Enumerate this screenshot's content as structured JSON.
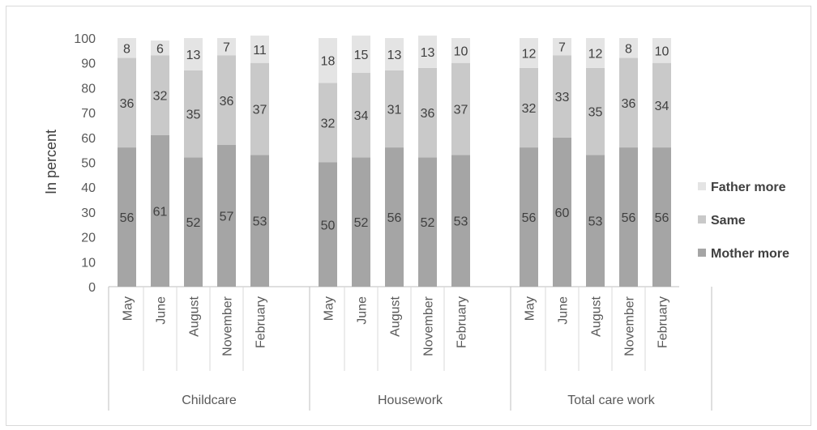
{
  "chart_data": {
    "type": "bar",
    "stacked": true,
    "ylabel": "In percent",
    "ylim": [
      0,
      100
    ],
    "yticks": [
      0,
      10,
      20,
      30,
      40,
      50,
      60,
      70,
      80,
      90,
      100
    ],
    "grid": false,
    "legend_position": "right",
    "groups": [
      {
        "name": "Childcare",
        "categories": [
          "May",
          "June",
          "August",
          "November",
          "February"
        ]
      },
      {
        "name": "Housework",
        "categories": [
          "May",
          "June",
          "August",
          "November",
          "February"
        ]
      },
      {
        "name": "Total care work",
        "categories": [
          "May",
          "June",
          "August",
          "November",
          "February"
        ]
      }
    ],
    "series": [
      {
        "name": "Mother more",
        "color": "#a5a5a5",
        "values": [
          [
            56,
            61,
            52,
            57,
            53
          ],
          [
            50,
            52,
            56,
            52,
            53
          ],
          [
            56,
            60,
            53,
            56,
            56
          ]
        ]
      },
      {
        "name": "Same",
        "color": "#c9c9c9",
        "values": [
          [
            36,
            32,
            35,
            36,
            37
          ],
          [
            32,
            34,
            31,
            36,
            37
          ],
          [
            32,
            33,
            35,
            36,
            34
          ]
        ]
      },
      {
        "name": "Father more",
        "color": "#e4e4e4",
        "values": [
          [
            8,
            6,
            13,
            7,
            11
          ],
          [
            18,
            15,
            13,
            13,
            10
          ],
          [
            12,
            7,
            12,
            8,
            10
          ]
        ]
      }
    ]
  }
}
